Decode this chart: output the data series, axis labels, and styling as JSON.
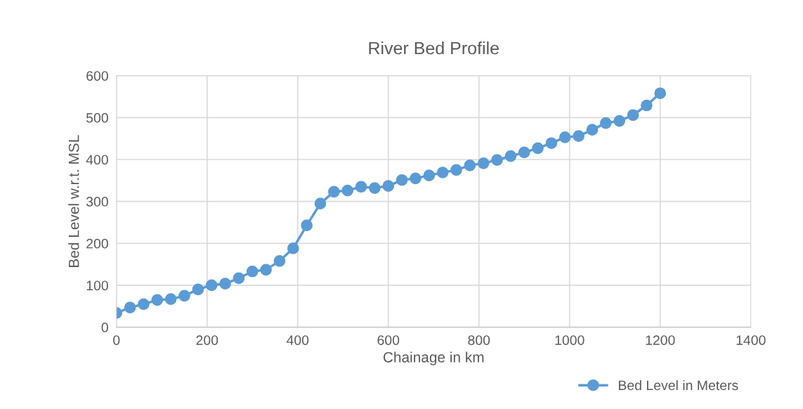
{
  "chart_data": {
    "type": "line",
    "title": "River Bed Profile",
    "xlabel": "Chainage in km",
    "ylabel": "Bed Level w.r.t. MSL",
    "x": [
      0,
      30,
      60,
      90,
      120,
      150,
      180,
      210,
      240,
      270,
      300,
      330,
      360,
      390,
      420,
      450,
      480,
      510,
      540,
      570,
      600,
      630,
      660,
      690,
      720,
      750,
      780,
      810,
      840,
      870,
      900,
      930,
      960,
      990,
      1020,
      1050,
      1080,
      1110,
      1140,
      1170,
      1200
    ],
    "series": [
      {
        "name": "Bed Level in Meters",
        "color": "#5b9bd5",
        "values": [
          34,
          47,
          55,
          65,
          67,
          75,
          90,
          100,
          104,
          117,
          133,
          137,
          158,
          188,
          243,
          295,
          323,
          326,
          335,
          332,
          337,
          351,
          355,
          362,
          369,
          375,
          386,
          391,
          399,
          408,
          417,
          427,
          439,
          453,
          456,
          471,
          487,
          492,
          506,
          529,
          558
        ]
      }
    ],
    "xlim": [
      0,
      1400
    ],
    "xticks": [
      0,
      200,
      400,
      600,
      800,
      1000,
      1200,
      1400
    ],
    "ylim": [
      0,
      600
    ],
    "yticks": [
      0,
      100,
      200,
      300,
      400,
      500,
      600
    ],
    "grid": true,
    "legend": "bottom right",
    "marker": "circle",
    "line_style": "solid"
  }
}
